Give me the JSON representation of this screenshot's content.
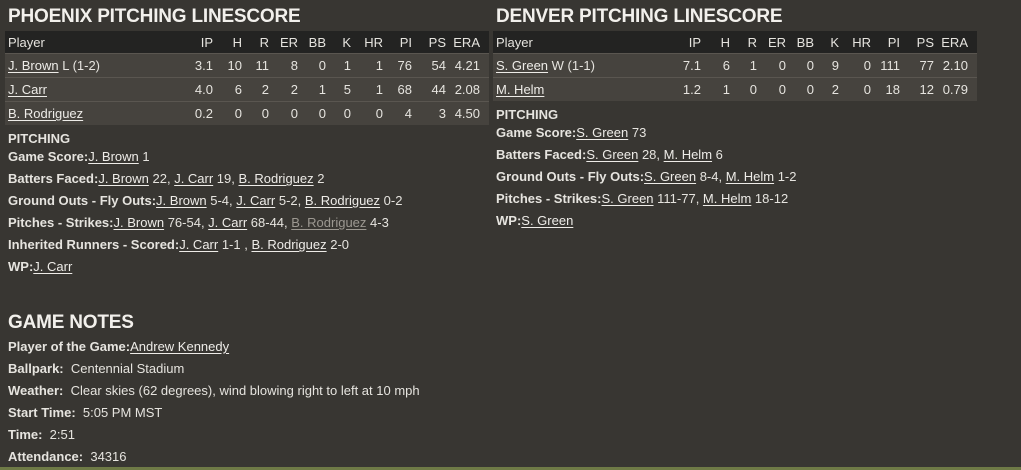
{
  "columns": [
    "Player",
    "IP",
    "H",
    "R",
    "ER",
    "BB",
    "K",
    "HR",
    "PI",
    "PS",
    "ERA"
  ],
  "teams": [
    {
      "title": "PHOENIX PITCHING LINESCORE",
      "rows": [
        {
          "player": "J. Brown",
          "note": "L (1-2)",
          "stats": [
            "3.1",
            "10",
            "11",
            "8",
            "0",
            "1",
            "1",
            "76",
            "54",
            "4.21"
          ]
        },
        {
          "player": "J. Carr",
          "note": "",
          "stats": [
            "4.0",
            "6",
            "2",
            "2",
            "1",
            "5",
            "1",
            "68",
            "44",
            "2.08"
          ]
        },
        {
          "player": "B. Rodriguez",
          "note": "",
          "stats": [
            "0.2",
            "0",
            "0",
            "0",
            "0",
            "0",
            "0",
            "4",
            "3",
            "4.50"
          ]
        }
      ],
      "section": "PITCHING",
      "lines": [
        {
          "label": "Game Score:",
          "parts": [
            {
              "link": "J. Brown",
              "text": " 1"
            }
          ]
        },
        {
          "label": "Batters Faced:",
          "parts": [
            {
              "link": "J. Brown",
              "text": " 22, "
            },
            {
              "link": "J. Carr",
              "text": " 19, "
            },
            {
              "link": "B. Rodriguez",
              "text": " 2"
            }
          ]
        },
        {
          "label": "Ground Outs - Fly Outs:",
          "parts": [
            {
              "link": "J. Brown",
              "text": " 5-4, "
            },
            {
              "link": "J. Carr",
              "text": " 5-2, "
            },
            {
              "link": "B. Rodriguez",
              "text": " 0-2"
            }
          ]
        },
        {
          "label": "Pitches - Strikes:",
          "parts": [
            {
              "link": "J. Brown",
              "text": " 76-54, "
            },
            {
              "link": "J. Carr",
              "text": " 68-44, "
            },
            {
              "link": "B. Rodriguez",
              "text": " 4-3",
              "hovered": true
            }
          ]
        },
        {
          "label": "Inherited Runners - Scored:",
          "parts": [
            {
              "link": "J. Carr",
              "text": " 1-1 , "
            },
            {
              "link": "B. Rodriguez",
              "text": " 2-0"
            }
          ]
        },
        {
          "label": "WP:",
          "parts": [
            {
              "link": "J. Carr",
              "text": ""
            }
          ]
        }
      ]
    },
    {
      "title": "DENVER PITCHING LINESCORE",
      "rows": [
        {
          "player": "S. Green",
          "note": "W (1-1)",
          "stats": [
            "7.1",
            "6",
            "1",
            "0",
            "0",
            "9",
            "0",
            "111",
            "77",
            "2.10"
          ]
        },
        {
          "player": "M. Helm",
          "note": "",
          "stats": [
            "1.2",
            "1",
            "0",
            "0",
            "0",
            "2",
            "0",
            "18",
            "12",
            "0.79"
          ]
        }
      ],
      "section": "PITCHING",
      "lines": [
        {
          "label": "Game Score:",
          "parts": [
            {
              "link": "S. Green",
              "text": " 73"
            }
          ]
        },
        {
          "label": "Batters Faced:",
          "parts": [
            {
              "link": "S. Green",
              "text": " 28, "
            },
            {
              "link": "M. Helm",
              "text": " 6"
            }
          ]
        },
        {
          "label": "Ground Outs - Fly Outs:",
          "parts": [
            {
              "link": "S. Green",
              "text": " 8-4, "
            },
            {
              "link": "M. Helm",
              "text": " 1-2"
            }
          ]
        },
        {
          "label": "Pitches - Strikes:",
          "parts": [
            {
              "link": "S. Green",
              "text": " 111-77, "
            },
            {
              "link": "M. Helm",
              "text": " 18-12"
            }
          ]
        },
        {
          "label": "WP:",
          "parts": [
            {
              "link": "S. Green",
              "text": ""
            }
          ]
        }
      ]
    }
  ],
  "game_notes": {
    "title": "GAME NOTES",
    "items": [
      {
        "label": "Player of the Game:",
        "link": "Andrew Kennedy",
        "value": ""
      },
      {
        "label": "Ballpark:",
        "link": "",
        "value": "  Centennial Stadium"
      },
      {
        "label": "Weather:",
        "link": "",
        "value": "  Clear skies (62 degrees), wind blowing right to left at 10 mph"
      },
      {
        "label": "Start Time:",
        "link": "",
        "value": "  5:05 PM MST"
      },
      {
        "label": "Time:",
        "link": "",
        "value": "  2:51"
      },
      {
        "label": "Attendance:",
        "link": "",
        "value": "  34316"
      }
    ]
  }
}
